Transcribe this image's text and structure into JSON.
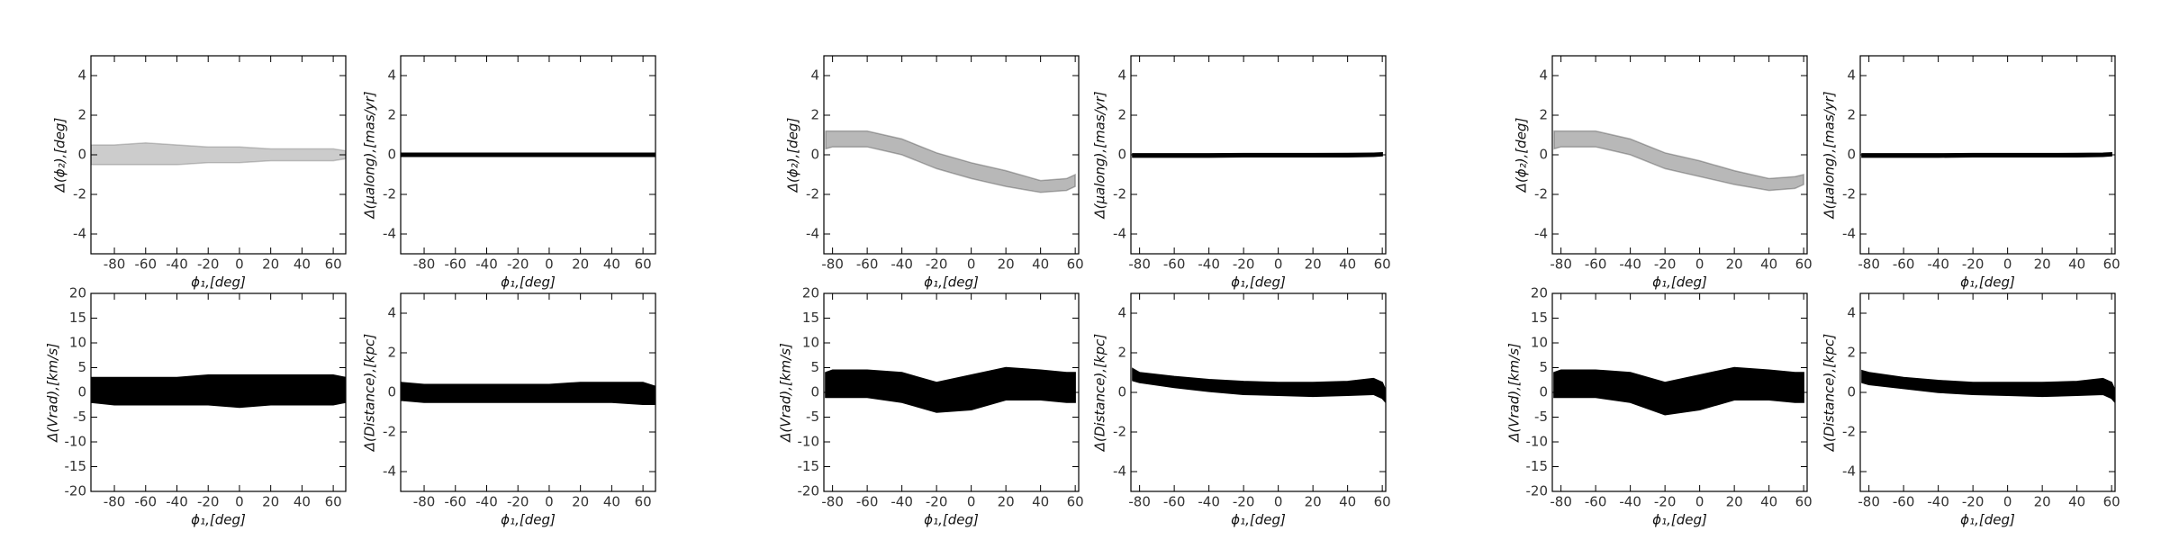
{
  "chart_data": [
    {
      "type": "band",
      "ylabel": "Δ(ϕ₂),[deg]",
      "xlabel": "ϕ₁,[deg]",
      "xlim": [
        -95,
        68
      ],
      "ylim": [
        -5,
        5
      ],
      "xticks": [
        -80,
        -60,
        -40,
        -20,
        0,
        20,
        40,
        60
      ],
      "yticks": [
        -4,
        -2,
        0,
        2,
        4
      ],
      "series": [
        {
          "color": "#555555",
          "opacity": 0.3,
          "x": [
            -95,
            -80,
            -60,
            -40,
            -20,
            0,
            20,
            40,
            60,
            68
          ],
          "lower": [
            -0.5,
            -0.5,
            -0.5,
            -0.5,
            -0.4,
            -0.4,
            -0.3,
            -0.3,
            -0.3,
            -0.2
          ],
          "upper": [
            0.5,
            0.5,
            0.6,
            0.5,
            0.4,
            0.4,
            0.3,
            0.3,
            0.3,
            0.2
          ]
        }
      ]
    },
    {
      "type": "band",
      "ylabel": "Δ(μalong),[mas/yr]",
      "xlabel": "ϕ₁,[deg]",
      "xlim": [
        -95,
        68
      ],
      "ylim": [
        -5,
        5
      ],
      "xticks": [
        -80,
        -60,
        -40,
        -20,
        0,
        20,
        40,
        60
      ],
      "yticks": [
        -4,
        -2,
        0,
        2,
        4
      ],
      "series": [
        {
          "color": "#000000",
          "opacity": 1,
          "x": [
            -95,
            -80,
            -60,
            -40,
            -20,
            0,
            20,
            40,
            60,
            68
          ],
          "lower": [
            -0.08,
            -0.08,
            -0.08,
            -0.08,
            -0.08,
            -0.08,
            -0.08,
            -0.08,
            -0.08,
            -0.08
          ],
          "upper": [
            0.08,
            0.08,
            0.08,
            0.08,
            0.08,
            0.08,
            0.08,
            0.08,
            0.08,
            0.08
          ]
        }
      ]
    },
    {
      "type": "band",
      "ylabel": "Δ(Vrad),[km/s]",
      "xlabel": "ϕ₁,[deg]",
      "xlim": [
        -95,
        68
      ],
      "ylim": [
        -20,
        20
      ],
      "xticks": [
        -80,
        -60,
        -40,
        -20,
        0,
        20,
        40,
        60
      ],
      "yticks": [
        -20,
        -15,
        -10,
        -5,
        0,
        5,
        10,
        15,
        20
      ],
      "series": [
        {
          "color": "#000000",
          "opacity": 1,
          "x": [
            -95,
            -80,
            -60,
            -40,
            -20,
            0,
            20,
            40,
            60,
            68
          ],
          "lower": [
            -2,
            -2.5,
            -2.5,
            -2.5,
            -2.5,
            -3,
            -2.5,
            -2.5,
            -2.5,
            -2
          ],
          "upper": [
            3,
            3,
            3,
            3,
            3.5,
            3.5,
            3.5,
            3.5,
            3.5,
            3
          ]
        }
      ]
    },
    {
      "type": "band",
      "ylabel": "Δ(Distance),[kpc]",
      "xlabel": "ϕ₁,[deg]",
      "xlim": [
        -95,
        68
      ],
      "ylim": [
        -5,
        5
      ],
      "xticks": [
        -80,
        -60,
        -40,
        -20,
        0,
        20,
        40,
        60
      ],
      "yticks": [
        -4,
        -2,
        0,
        2,
        4
      ],
      "series": [
        {
          "color": "#000000",
          "opacity": 1,
          "x": [
            -95,
            -80,
            -60,
            -40,
            -20,
            0,
            20,
            40,
            60,
            68
          ],
          "lower": [
            -0.4,
            -0.5,
            -0.5,
            -0.5,
            -0.5,
            -0.5,
            -0.5,
            -0.5,
            -0.6,
            -0.6
          ],
          "upper": [
            0.5,
            0.4,
            0.4,
            0.4,
            0.4,
            0.4,
            0.5,
            0.5,
            0.5,
            0.3
          ]
        }
      ]
    },
    {
      "type": "band",
      "ylabel": "Δ(ϕ₂),[deg]",
      "xlabel": "ϕ₁,[deg]",
      "xlim": [
        -85,
        62
      ],
      "ylim": [
        -5,
        5
      ],
      "xticks": [
        -80,
        -60,
        -40,
        -20,
        0,
        20,
        40,
        60
      ],
      "yticks": [
        -4,
        -2,
        0,
        2,
        4
      ],
      "series": [
        {
          "color": "#333333",
          "opacity": 0.35,
          "x": [
            -84,
            -80,
            -60,
            -40,
            -20,
            0,
            20,
            40,
            55,
            60
          ],
          "lower": [
            0.3,
            0.4,
            0.4,
            0,
            -0.7,
            -1.2,
            -1.6,
            -1.9,
            -1.8,
            -1.6
          ],
          "upper": [
            1.2,
            1.2,
            1.2,
            0.8,
            0.1,
            -0.4,
            -0.8,
            -1.3,
            -1.2,
            -1.0
          ]
        }
      ]
    },
    {
      "type": "band",
      "ylabel": "Δ(μalong),[mas/yr]",
      "xlabel": "ϕ₁,[deg]",
      "xlim": [
        -85,
        62
      ],
      "ylim": [
        -5,
        5
      ],
      "xticks": [
        -80,
        -60,
        -40,
        -20,
        0,
        20,
        40,
        60
      ],
      "yticks": [
        -4,
        -2,
        0,
        2,
        4
      ],
      "series": [
        {
          "color": "#000000",
          "opacity": 1,
          "x": [
            -84,
            -80,
            -60,
            -40,
            -20,
            0,
            20,
            40,
            55,
            60
          ],
          "lower": [
            -0.12,
            -0.12,
            -0.12,
            -0.12,
            -0.1,
            -0.1,
            -0.1,
            -0.1,
            -0.08,
            -0.05
          ],
          "upper": [
            0.05,
            0.05,
            0.05,
            0.05,
            0.06,
            0.06,
            0.06,
            0.07,
            0.08,
            0.1
          ]
        }
      ]
    },
    {
      "type": "band",
      "ylabel": "Δ(Vrad),[km/s]",
      "xlabel": "ϕ₁,[deg]",
      "xlim": [
        -85,
        62
      ],
      "ylim": [
        -20,
        20
      ],
      "xticks": [
        -80,
        -60,
        -40,
        -20,
        0,
        20,
        40,
        60
      ],
      "yticks": [
        -20,
        -15,
        -10,
        -5,
        0,
        5,
        10,
        15,
        20
      ],
      "series": [
        {
          "color": "#000000",
          "opacity": 1,
          "x": [
            -84,
            -80,
            -60,
            -40,
            -20,
            0,
            20,
            40,
            55,
            60
          ],
          "lower": [
            -1,
            -1,
            -1,
            -2,
            -4,
            -3.5,
            -1.5,
            -1.5,
            -2,
            -2
          ],
          "upper": [
            4,
            4.5,
            4.5,
            4,
            2,
            3.5,
            5,
            4.5,
            4,
            4
          ]
        }
      ]
    },
    {
      "type": "band",
      "ylabel": "Δ(Distance),[kpc]",
      "xlabel": "ϕ₁,[deg]",
      "xlim": [
        -85,
        62
      ],
      "ylim": [
        -5,
        5
      ],
      "xticks": [
        -80,
        -60,
        -40,
        -20,
        0,
        20,
        40,
        60
      ],
      "yticks": [
        -4,
        -2,
        0,
        2,
        4
      ],
      "series": [
        {
          "color": "#000000",
          "opacity": 1,
          "x": [
            -84,
            -80,
            -60,
            -40,
            -20,
            0,
            20,
            40,
            55,
            60,
            62
          ],
          "lower": [
            0.6,
            0.5,
            0.25,
            0.05,
            -0.1,
            -0.15,
            -0.2,
            -0.15,
            -0.1,
            -0.3,
            -0.5
          ],
          "upper": [
            1.2,
            1.0,
            0.8,
            0.65,
            0.55,
            0.5,
            0.5,
            0.55,
            0.7,
            0.5,
            0.1
          ]
        }
      ]
    },
    {
      "type": "band",
      "ylabel": "Δ(ϕ₂),[deg]",
      "xlabel": "ϕ₁,[deg]",
      "xlim": [
        -85,
        62
      ],
      "ylim": [
        -5,
        5
      ],
      "xticks": [
        -80,
        -60,
        -40,
        -20,
        0,
        20,
        40,
        60
      ],
      "yticks": [
        -4,
        -2,
        0,
        2,
        4
      ],
      "series": [
        {
          "color": "#333333",
          "opacity": 0.35,
          "x": [
            -84,
            -80,
            -60,
            -40,
            -20,
            0,
            20,
            40,
            55,
            60
          ],
          "lower": [
            0.3,
            0.4,
            0.4,
            0,
            -0.7,
            -1.1,
            -1.5,
            -1.8,
            -1.7,
            -1.5
          ],
          "upper": [
            1.2,
            1.2,
            1.2,
            0.8,
            0.1,
            -0.3,
            -0.8,
            -1.2,
            -1.1,
            -1.0
          ]
        }
      ]
    },
    {
      "type": "band",
      "ylabel": "Δ(μalong),[mas/yr]",
      "xlabel": "ϕ₁,[deg]",
      "xlim": [
        -85,
        62
      ],
      "ylim": [
        -5,
        5
      ],
      "xticks": [
        -80,
        -60,
        -40,
        -20,
        0,
        20,
        40,
        60
      ],
      "yticks": [
        -4,
        -2,
        0,
        2,
        4
      ],
      "series": [
        {
          "color": "#000000",
          "opacity": 1,
          "x": [
            -84,
            -80,
            -60,
            -40,
            -20,
            0,
            20,
            40,
            55,
            60
          ],
          "lower": [
            -0.12,
            -0.12,
            -0.12,
            -0.12,
            -0.1,
            -0.1,
            -0.1,
            -0.1,
            -0.08,
            -0.05
          ],
          "upper": [
            0.05,
            0.05,
            0.05,
            0.05,
            0.06,
            0.06,
            0.06,
            0.07,
            0.08,
            0.1
          ]
        }
      ]
    },
    {
      "type": "band",
      "ylabel": "Δ(Vrad),[km/s]",
      "xlabel": "ϕ₁,[deg]",
      "xlim": [
        -85,
        62
      ],
      "ylim": [
        -20,
        20
      ],
      "xticks": [
        -80,
        -60,
        -40,
        -20,
        0,
        20,
        40,
        60
      ],
      "yticks": [
        -20,
        -15,
        -10,
        -5,
        0,
        5,
        10,
        15,
        20
      ],
      "series": [
        {
          "color": "#000000",
          "opacity": 1,
          "x": [
            -84,
            -80,
            -60,
            -40,
            -20,
            0,
            20,
            40,
            55,
            60
          ],
          "lower": [
            -1,
            -1,
            -1,
            -2,
            -4.5,
            -3.5,
            -1.5,
            -1.5,
            -2,
            -2
          ],
          "upper": [
            4,
            4.5,
            4.5,
            4,
            2,
            3.5,
            5,
            4.5,
            4,
            4
          ]
        }
      ]
    },
    {
      "type": "band",
      "ylabel": "Δ(Distance),[kpc]",
      "xlabel": "ϕ₁,[deg]",
      "xlim": [
        -85,
        62
      ],
      "ylim": [
        -5,
        5
      ],
      "xticks": [
        -80,
        -60,
        -40,
        -20,
        0,
        20,
        40,
        60
      ],
      "yticks": [
        -4,
        -2,
        0,
        2,
        4
      ],
      "series": [
        {
          "color": "#000000",
          "opacity": 1,
          "x": [
            -84,
            -80,
            -60,
            -40,
            -20,
            0,
            20,
            40,
            55,
            60,
            62
          ],
          "lower": [
            0.5,
            0.4,
            0.2,
            0,
            -0.1,
            -0.15,
            -0.2,
            -0.15,
            -0.1,
            -0.3,
            -0.5
          ],
          "upper": [
            1.1,
            1.0,
            0.75,
            0.6,
            0.5,
            0.5,
            0.5,
            0.55,
            0.7,
            0.5,
            0.1
          ]
        }
      ]
    }
  ]
}
